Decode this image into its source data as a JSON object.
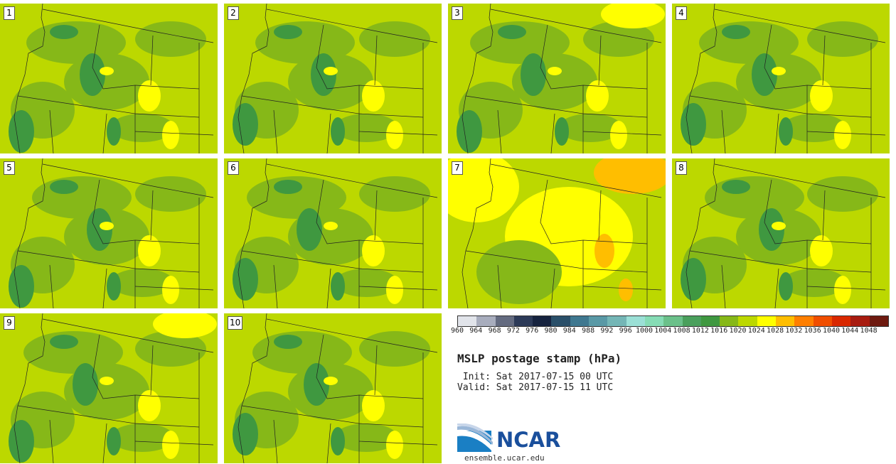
{
  "panels": [
    {
      "number": "1"
    },
    {
      "number": "2"
    },
    {
      "number": "3"
    },
    {
      "number": "4"
    },
    {
      "number": "5"
    },
    {
      "number": "6"
    },
    {
      "number": "7"
    },
    {
      "number": "8"
    },
    {
      "number": "9"
    },
    {
      "number": "10"
    }
  ],
  "colorbar": {
    "colors": [
      "#e1e4ea",
      "#a8adbd",
      "#646b80",
      "#2c3a58",
      "#16233f",
      "#2a4f69",
      "#3f7890",
      "#5999a6",
      "#74b6b6",
      "#9be0d6",
      "#86dcb5",
      "#6bc18a",
      "#4aa05c",
      "#3f9840",
      "#86b818",
      "#bcd800",
      "#ffff00",
      "#ffbe00",
      "#ff7f00",
      "#f04e00",
      "#d92800",
      "#a81c10",
      "#6e1a10"
    ],
    "labels": [
      "960",
      "964",
      "968",
      "972",
      "976",
      "980",
      "984",
      "988",
      "992",
      "996",
      "1000",
      "1004",
      "1008",
      "1012",
      "1016",
      "1020",
      "1024",
      "1028",
      "1032",
      "1036",
      "1040",
      "1044",
      "1048"
    ]
  },
  "title": "MSLP postage stamp (hPa)",
  "init": " Init: Sat 2017-07-15 00 UTC",
  "valid": "Valid: Sat 2017-07-15 11 UTC",
  "logo": {
    "text": "NCAR",
    "url": "ensemble.ucar.edu"
  },
  "map_colors": {
    "base": "#bcd800",
    "green": "#86b818",
    "dark": "#3f9840",
    "yellow": "#ffff00",
    "orange": "#ffbe00"
  }
}
